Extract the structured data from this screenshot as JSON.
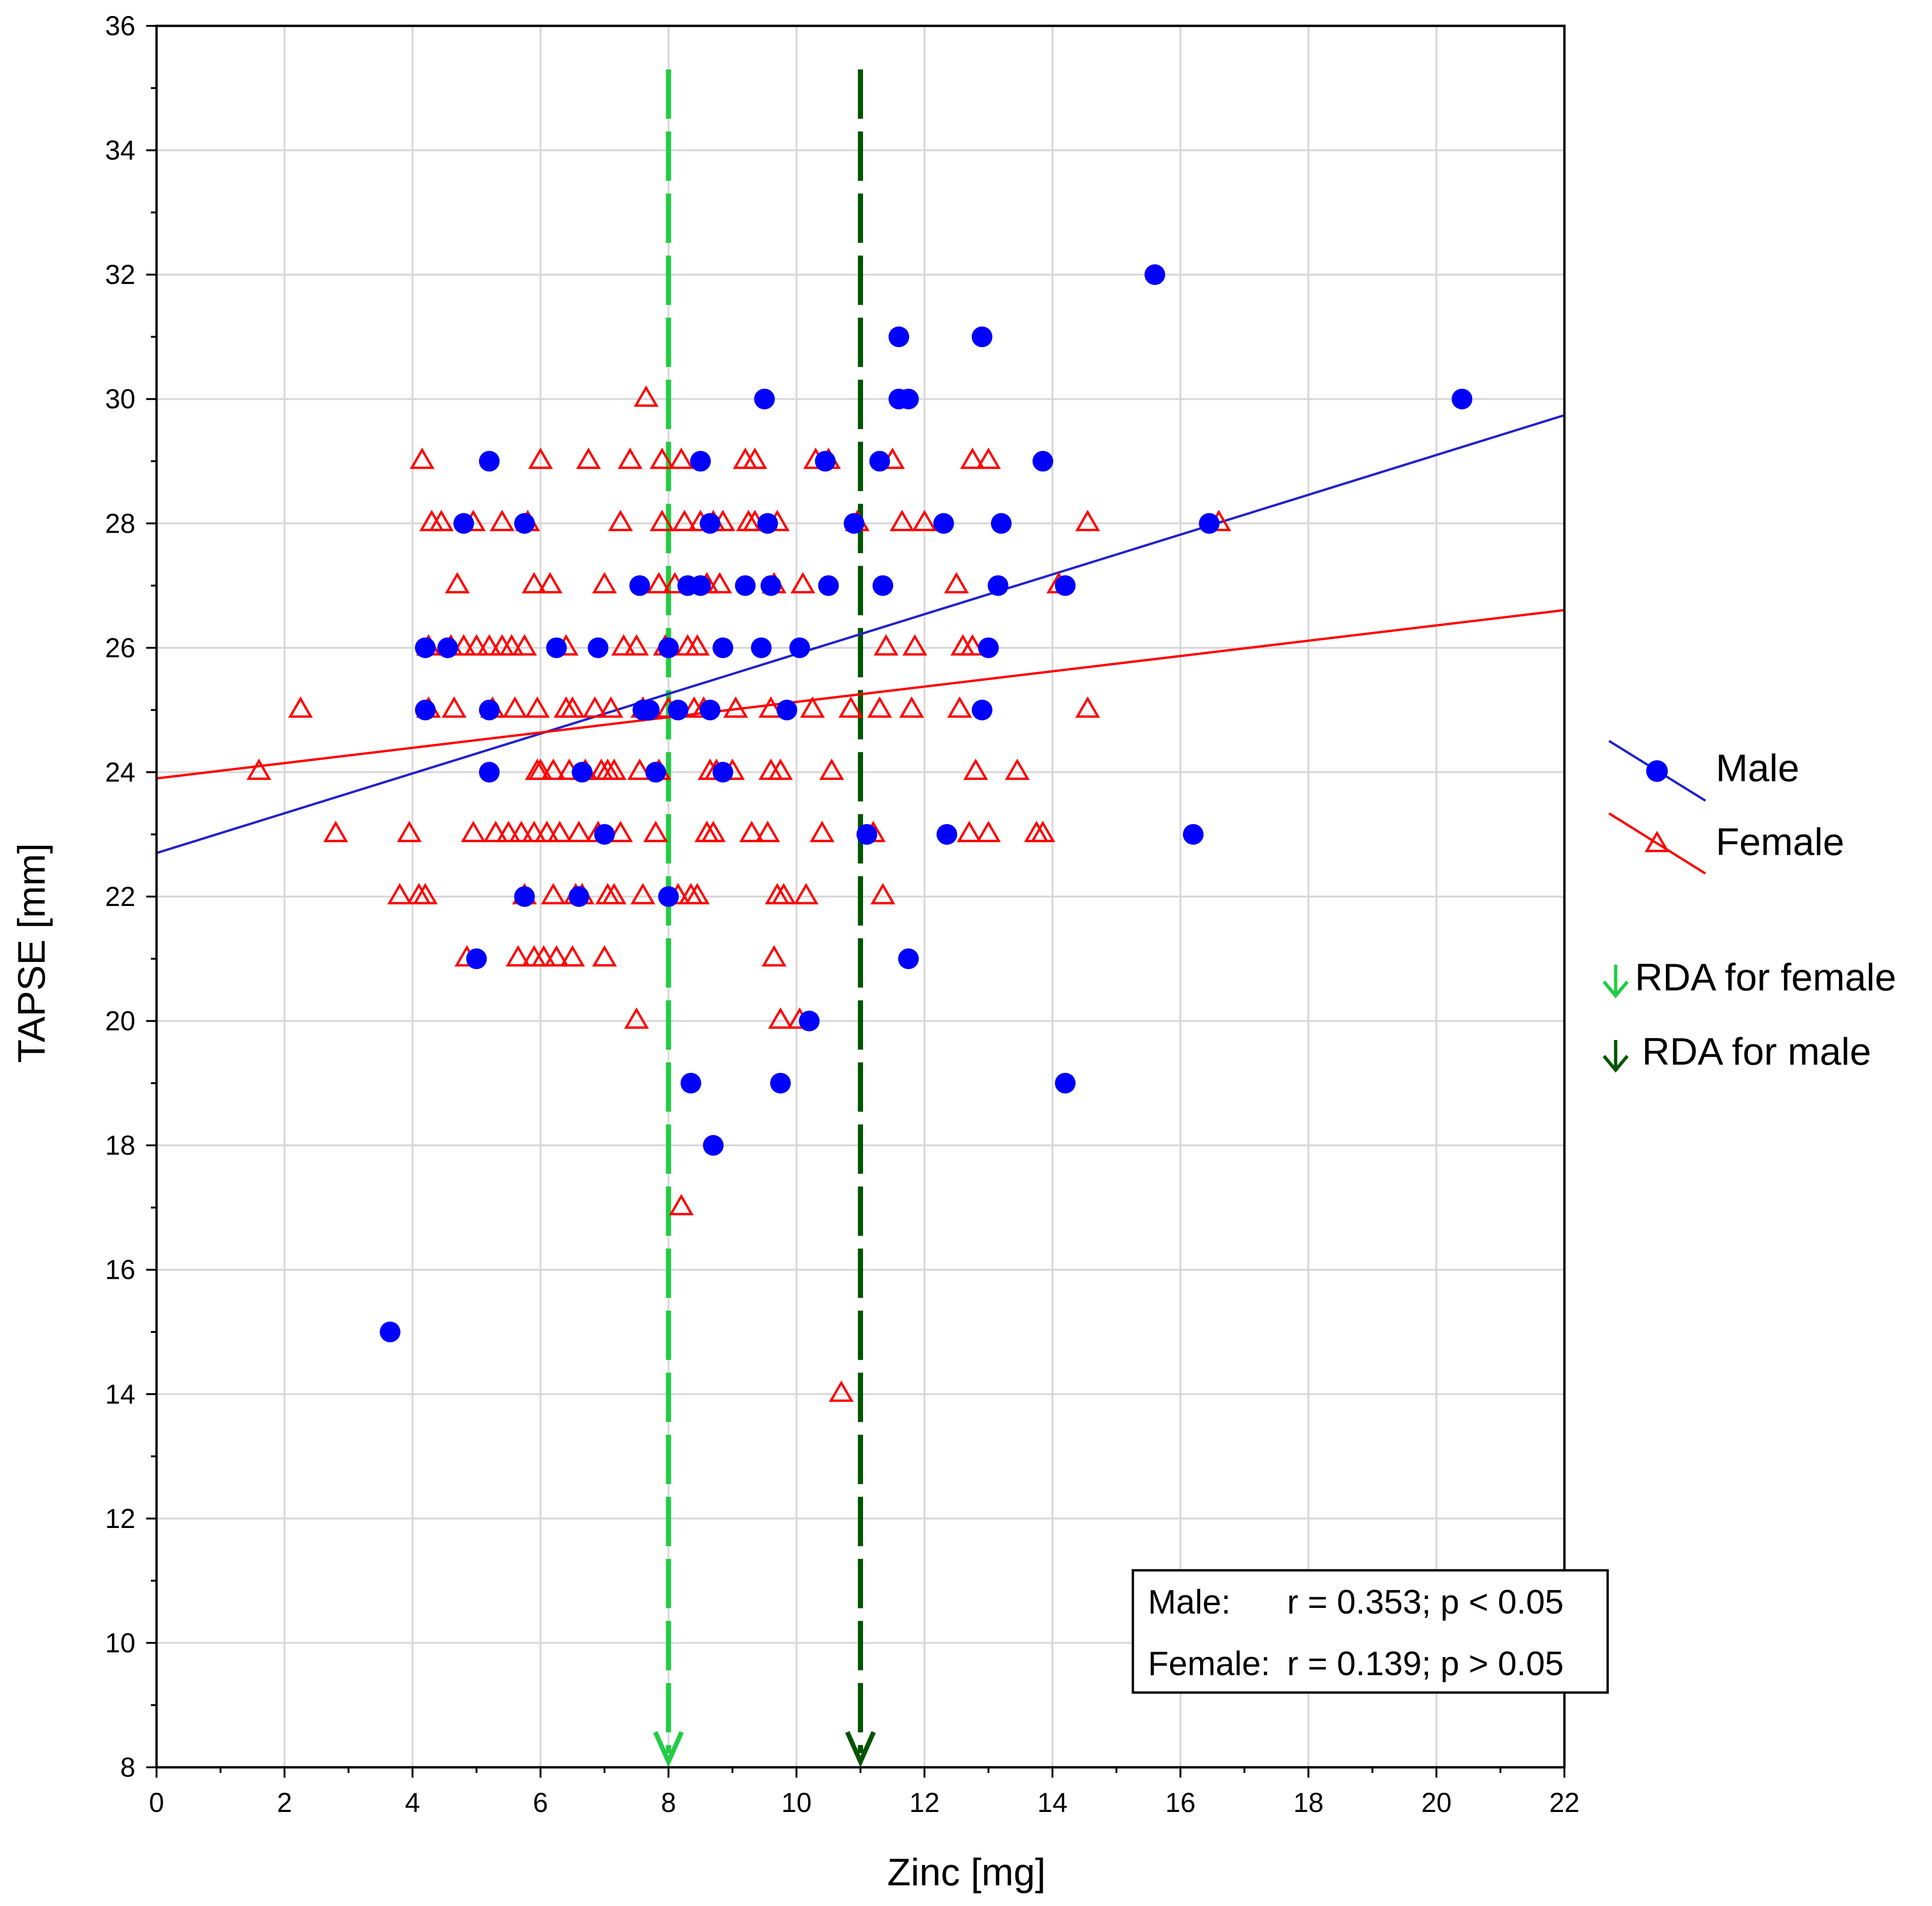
{
  "chart_data": {
    "type": "scatter",
    "xlabel": "Zinc [mg]",
    "ylabel": "TAPSE [mm]",
    "xlim": [
      0,
      22
    ],
    "ylim": [
      8,
      36
    ],
    "x_ticks": [
      0,
      2,
      4,
      6,
      8,
      10,
      12,
      14,
      16,
      18,
      20,
      22
    ],
    "y_ticks": [
      8,
      10,
      12,
      14,
      16,
      18,
      20,
      22,
      24,
      26,
      28,
      30,
      32,
      34,
      36
    ],
    "grid": true,
    "legend_position": "right",
    "colors": {
      "male": "#0000ff",
      "male_line": "#2222cc",
      "female": "#ff0000",
      "rda_female": "#22cc44",
      "rda_male": "#005500"
    },
    "series": [
      {
        "name": "Male",
        "marker": "circle",
        "fit": {
          "intercept": 22.7,
          "slope": 0.32
        },
        "points": [
          [
            3.65,
            15
          ],
          [
            4.2,
            25
          ],
          [
            4.2,
            26
          ],
          [
            4.8,
            28
          ],
          [
            5.0,
            21
          ],
          [
            5.2,
            29
          ],
          [
            5.2,
            25
          ],
          [
            5.2,
            24
          ],
          [
            5.75,
            28
          ],
          [
            5.75,
            22
          ],
          [
            6.25,
            26
          ],
          [
            6.6,
            22
          ],
          [
            6.65,
            24
          ],
          [
            6.9,
            26
          ],
          [
            7.0,
            23
          ],
          [
            7.55,
            27
          ],
          [
            7.7,
            25
          ],
          [
            7.8,
            24
          ],
          [
            8.0,
            26
          ],
          [
            8.0,
            22
          ],
          [
            8.15,
            25
          ],
          [
            8.35,
            19
          ],
          [
            8.5,
            29
          ],
          [
            8.5,
            27
          ],
          [
            8.65,
            28
          ],
          [
            8.65,
            25
          ],
          [
            8.7,
            18
          ],
          [
            8.85,
            26
          ],
          [
            8.85,
            24
          ],
          [
            9.2,
            27
          ],
          [
            9.45,
            26
          ],
          [
            9.5,
            30
          ],
          [
            9.55,
            28
          ],
          [
            9.6,
            27
          ],
          [
            9.75,
            19
          ],
          [
            9.85,
            25
          ],
          [
            10.05,
            26
          ],
          [
            10.2,
            20
          ],
          [
            10.45,
            29
          ],
          [
            10.5,
            27
          ],
          [
            10.9,
            28
          ],
          [
            11.1,
            23
          ],
          [
            11.3,
            29
          ],
          [
            11.35,
            27
          ],
          [
            11.6,
            31
          ],
          [
            11.6,
            30
          ],
          [
            11.75,
            30
          ],
          [
            11.75,
            21
          ],
          [
            12.3,
            28
          ],
          [
            12.35,
            23
          ],
          [
            12.9,
            31
          ],
          [
            12.9,
            25
          ],
          [
            13.0,
            26
          ],
          [
            13.15,
            27
          ],
          [
            13.2,
            28
          ],
          [
            13.85,
            29
          ],
          [
            14.2,
            27
          ],
          [
            14.2,
            19
          ],
          [
            15.6,
            32
          ],
          [
            16.2,
            23
          ],
          [
            16.45,
            28
          ],
          [
            20.4,
            30
          ],
          [
            4.55,
            26
          ],
          [
            8.3,
            27
          ],
          [
            7.6,
            25
          ]
        ]
      },
      {
        "name": "Female",
        "marker": "triangle",
        "fit": {
          "intercept": 23.9,
          "slope": 0.123
        },
        "points": [
          [
            1.6,
            24
          ],
          [
            2.25,
            25
          ],
          [
            2.8,
            23
          ],
          [
            3.8,
            22
          ],
          [
            3.95,
            23
          ],
          [
            4.1,
            22
          ],
          [
            4.15,
            29
          ],
          [
            4.2,
            22
          ],
          [
            4.25,
            26
          ],
          [
            4.25,
            25
          ],
          [
            4.3,
            28
          ],
          [
            4.45,
            28
          ],
          [
            4.6,
            26
          ],
          [
            4.65,
            25
          ],
          [
            4.7,
            27
          ],
          [
            4.8,
            26
          ],
          [
            4.85,
            21
          ],
          [
            4.95,
            28
          ],
          [
            4.95,
            23
          ],
          [
            5.0,
            26
          ],
          [
            5.2,
            26
          ],
          [
            5.25,
            25
          ],
          [
            5.3,
            23
          ],
          [
            5.4,
            26
          ],
          [
            5.4,
            28
          ],
          [
            5.5,
            23
          ],
          [
            5.55,
            26
          ],
          [
            5.6,
            25
          ],
          [
            5.65,
            21
          ],
          [
            5.7,
            23
          ],
          [
            5.75,
            22
          ],
          [
            5.75,
            26
          ],
          [
            5.8,
            28
          ],
          [
            5.9,
            27
          ],
          [
            5.9,
            23
          ],
          [
            5.9,
            21
          ],
          [
            5.95,
            25
          ],
          [
            5.95,
            24
          ],
          [
            6.0,
            29
          ],
          [
            6.0,
            24
          ],
          [
            6.05,
            21
          ],
          [
            6.1,
            23
          ],
          [
            6.15,
            27
          ],
          [
            6.2,
            22
          ],
          [
            6.2,
            24
          ],
          [
            6.25,
            21
          ],
          [
            6.3,
            23
          ],
          [
            6.4,
            26
          ],
          [
            6.4,
            25
          ],
          [
            6.45,
            24
          ],
          [
            6.5,
            25
          ],
          [
            6.5,
            21
          ],
          [
            6.55,
            22
          ],
          [
            6.6,
            23
          ],
          [
            6.65,
            22
          ],
          [
            6.7,
            24
          ],
          [
            6.75,
            29
          ],
          [
            6.85,
            25
          ],
          [
            6.9,
            23
          ],
          [
            6.95,
            24
          ],
          [
            7.0,
            27
          ],
          [
            7.0,
            21
          ],
          [
            7.05,
            22
          ],
          [
            7.05,
            24
          ],
          [
            7.1,
            25
          ],
          [
            7.15,
            22
          ],
          [
            7.15,
            24
          ],
          [
            7.25,
            28
          ],
          [
            7.25,
            23
          ],
          [
            7.3,
            26
          ],
          [
            7.4,
            29
          ],
          [
            7.5,
            26
          ],
          [
            7.5,
            20
          ],
          [
            7.55,
            24
          ],
          [
            7.6,
            22
          ],
          [
            7.6,
            25
          ],
          [
            7.65,
            30
          ],
          [
            7.8,
            23
          ],
          [
            7.85,
            24
          ],
          [
            7.85,
            27
          ],
          [
            7.9,
            28
          ],
          [
            7.9,
            29
          ],
          [
            7.95,
            26
          ],
          [
            8.0,
            25
          ],
          [
            8.1,
            27
          ],
          [
            8.15,
            22
          ],
          [
            8.2,
            29
          ],
          [
            8.2,
            17
          ],
          [
            8.25,
            28
          ],
          [
            8.3,
            26
          ],
          [
            8.35,
            22
          ],
          [
            8.4,
            25
          ],
          [
            8.45,
            26
          ],
          [
            8.45,
            22
          ],
          [
            8.5,
            28
          ],
          [
            8.55,
            25
          ],
          [
            8.6,
            27
          ],
          [
            8.6,
            23
          ],
          [
            8.65,
            24
          ],
          [
            8.7,
            28
          ],
          [
            8.7,
            23
          ],
          [
            8.75,
            24
          ],
          [
            8.8,
            27
          ],
          [
            8.85,
            28
          ],
          [
            9.0,
            24
          ],
          [
            9.05,
            25
          ],
          [
            9.2,
            29
          ],
          [
            9.25,
            28
          ],
          [
            9.3,
            23
          ],
          [
            9.35,
            29
          ],
          [
            9.35,
            28
          ],
          [
            9.55,
            23
          ],
          [
            9.6,
            25
          ],
          [
            9.6,
            24
          ],
          [
            9.65,
            27
          ],
          [
            9.65,
            21
          ],
          [
            9.7,
            22
          ],
          [
            9.7,
            28
          ],
          [
            9.75,
            24
          ],
          [
            9.75,
            20
          ],
          [
            9.8,
            22
          ],
          [
            10.05,
            20
          ],
          [
            10.1,
            27
          ],
          [
            10.15,
            22
          ],
          [
            10.25,
            25
          ],
          [
            10.3,
            29
          ],
          [
            10.4,
            23
          ],
          [
            10.5,
            29
          ],
          [
            10.55,
            24
          ],
          [
            10.7,
            14
          ],
          [
            10.85,
            25
          ],
          [
            10.95,
            28
          ],
          [
            11.2,
            23
          ],
          [
            11.3,
            25
          ],
          [
            11.35,
            22
          ],
          [
            11.4,
            26
          ],
          [
            11.5,
            29
          ],
          [
            11.65,
            28
          ],
          [
            11.8,
            25
          ],
          [
            11.85,
            26
          ],
          [
            12.0,
            28
          ],
          [
            12.5,
            27
          ],
          [
            12.55,
            25
          ],
          [
            12.6,
            26
          ],
          [
            12.7,
            23
          ],
          [
            12.75,
            29
          ],
          [
            12.75,
            26
          ],
          [
            12.8,
            24
          ],
          [
            13.0,
            29
          ],
          [
            13.0,
            23
          ],
          [
            13.45,
            24
          ],
          [
            13.75,
            23
          ],
          [
            13.85,
            23
          ],
          [
            14.1,
            27
          ],
          [
            14.55,
            28
          ],
          [
            14.55,
            25
          ],
          [
            16.6,
            28
          ]
        ]
      }
    ],
    "reference_lines": [
      {
        "name": "RDA for female",
        "x": 8,
        "color": "#22cc44"
      },
      {
        "name": "RDA for male",
        "x": 11,
        "color": "#005500"
      }
    ],
    "legend": [
      {
        "label": "Male"
      },
      {
        "label": "Female"
      },
      {
        "label": "RDA for female"
      },
      {
        "label": "RDA for male"
      }
    ],
    "stats_box": {
      "male_label": "Male:",
      "male_text": "r = 0.353; p < 0.05",
      "female_label": "Female:",
      "female_text": "r = 0.139; p > 0.05"
    }
  }
}
